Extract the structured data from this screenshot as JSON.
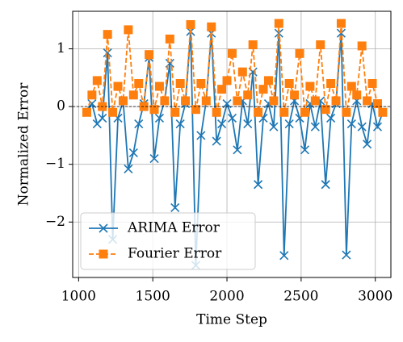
{
  "chart_data": {
    "type": "line",
    "x_label": "Time Step",
    "y_label": "Normalized Error",
    "xlim": [
      960,
      3105
    ],
    "ylim": [
      -2.96,
      1.65
    ],
    "xticks": [
      1000,
      1500,
      2000,
      2500,
      3000
    ],
    "yticks": [
      -2,
      -1,
      0,
      1
    ],
    "grid": true,
    "legend": "lower left",
    "reference_line": 0,
    "x": [
      1055,
      1090,
      1125,
      1160,
      1195,
      1230,
      1265,
      1300,
      1335,
      1370,
      1405,
      1440,
      1475,
      1510,
      1545,
      1580,
      1615,
      1650,
      1685,
      1720,
      1755,
      1790,
      1825,
      1860,
      1895,
      1930,
      1965,
      2000,
      2035,
      2070,
      2105,
      2140,
      2175,
      2210,
      2245,
      2280,
      2315,
      2350,
      2385,
      2420,
      2455,
      2490,
      2525,
      2560,
      2595,
      2630,
      2665,
      2700,
      2735,
      2770,
      2805,
      2840,
      2875,
      2910,
      2945,
      2980,
      3015,
      3050
    ],
    "series": [
      {
        "name": "ARIMA Error",
        "color": "#1f77b4",
        "marker": "x",
        "dashed": false,
        "values": [
          -0.1,
          0.05,
          -0.3,
          -0.2,
          0.93,
          -2.3,
          -0.2,
          0.1,
          -1.08,
          -0.8,
          -0.3,
          0.05,
          0.85,
          -0.9,
          -0.2,
          0.1,
          0.75,
          -1.75,
          -0.3,
          0.05,
          1.3,
          -2.75,
          -0.5,
          0.1,
          1.27,
          -0.6,
          -0.3,
          0.05,
          -0.2,
          -0.75,
          0.1,
          -0.3,
          0.6,
          -1.35,
          -0.2,
          0.05,
          -0.35,
          1.27,
          -2.58,
          -0.3,
          0.1,
          -0.2,
          -0.75,
          0.05,
          -0.35,
          0.1,
          -1.35,
          -0.2,
          0.05,
          1.27,
          -2.57,
          -0.3,
          0.1,
          -0.35,
          -0.65,
          0.05,
          -0.35,
          -0.1
        ]
      },
      {
        "name": "Fourier Error",
        "color": "#ff7f0e",
        "marker": "square",
        "dashed": true,
        "values": [
          -0.1,
          0.2,
          0.45,
          0,
          1.25,
          -0.1,
          0.35,
          0.1,
          1.33,
          0.2,
          0.4,
          0,
          0.9,
          -0.05,
          0.35,
          0.1,
          1.17,
          -0.1,
          0.4,
          0.1,
          1.42,
          -0.05,
          0.4,
          0.1,
          1.38,
          -0.1,
          0.3,
          0.45,
          0.92,
          0.1,
          0.6,
          0.2,
          1.07,
          -0.1,
          0.3,
          0.45,
          0.1,
          1.44,
          -0.1,
          0.4,
          0.2,
          0.92,
          -0.1,
          0.35,
          0.1,
          1.07,
          -0.05,
          0.4,
          0.1,
          1.44,
          -0.1,
          0.35,
          0.2,
          1.05,
          0.1,
          0.4,
          0.05,
          -0.1
        ]
      }
    ]
  }
}
